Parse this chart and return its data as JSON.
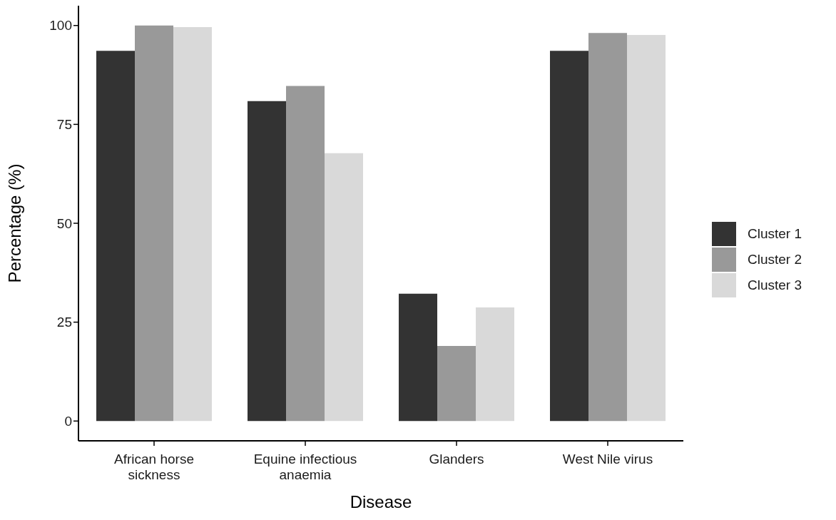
{
  "chart_data": {
    "type": "bar",
    "xlabel": "Disease",
    "ylabel": "Percentage (%)",
    "categories": [
      "African horse sickness",
      "Equine infectious anaemia",
      "Glanders",
      "West Nile virus"
    ],
    "series": [
      {
        "name": "Cluster 1",
        "color": "#333333",
        "values": [
          93.6,
          80.9,
          32.2,
          93.6
        ]
      },
      {
        "name": "Cluster 2",
        "color": "#999999",
        "values": [
          100,
          84.7,
          19.0,
          98.1
        ]
      },
      {
        "name": "Cluster 3",
        "color": "#d9d9d9",
        "values": [
          99.6,
          67.7,
          28.7,
          97.6
        ]
      }
    ],
    "ylim": [
      -5,
      105
    ],
    "yticks": [
      0,
      25,
      50,
      75,
      100
    ],
    "grid": false,
    "legend": "right"
  }
}
